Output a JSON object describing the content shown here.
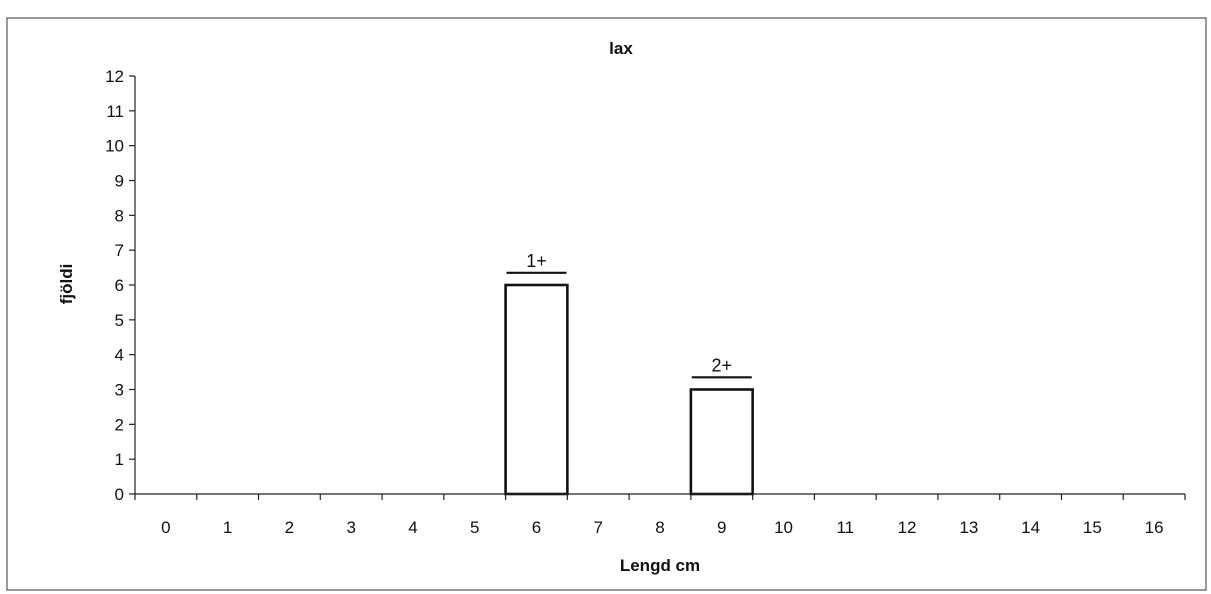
{
  "chart_data": {
    "type": "bar",
    "title": "lax",
    "xlabel": "Lengd cm",
    "ylabel": "fjöldi",
    "categories": [
      "0",
      "1",
      "2",
      "3",
      "4",
      "5",
      "6",
      "7",
      "8",
      "9",
      "10",
      "11",
      "12",
      "13",
      "14",
      "15",
      "16"
    ],
    "values": [
      0,
      0,
      0,
      0,
      0,
      0,
      6,
      0,
      0,
      3,
      0,
      0,
      0,
      0,
      0,
      0,
      0
    ],
    "ylim": [
      0,
      12
    ],
    "yticks": [
      0,
      1,
      2,
      3,
      4,
      5,
      6,
      7,
      8,
      9,
      10,
      11,
      12
    ],
    "grid": false,
    "legend": "none",
    "annotations": [
      {
        "label": "1+",
        "category": "6",
        "y": 6.35
      },
      {
        "label": "2+",
        "category": "9",
        "y": 3.35
      }
    ],
    "colors": {
      "bar_fill": "#ffffff",
      "bar_stroke": "#111111",
      "axis": "#222222",
      "frame": "#555555"
    }
  }
}
